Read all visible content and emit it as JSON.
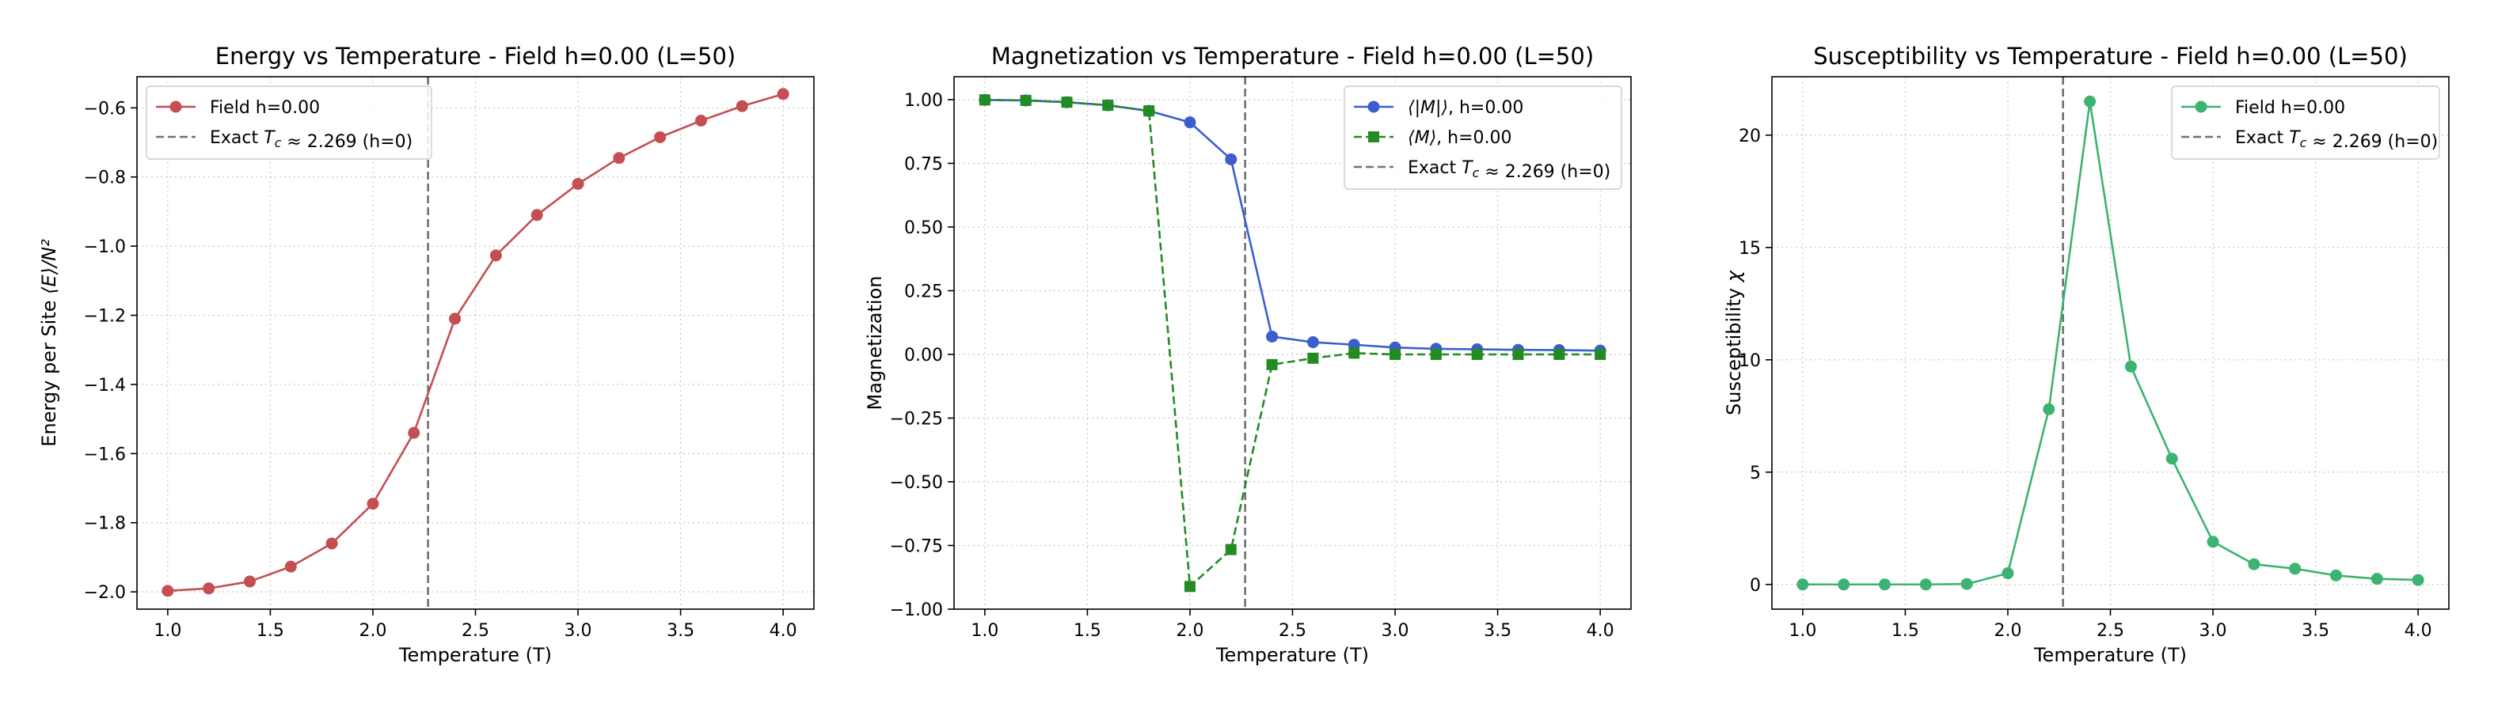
{
  "chart_data": [
    {
      "type": "line",
      "title": "Energy vs Temperature - Field h=0.00 (L=50)",
      "xlabel": "Temperature (T)",
      "ylabel": "Energy per Site ⟨E⟩/N²",
      "xlim": [
        0.85,
        4.15
      ],
      "ylim": [
        -2.05,
        -0.51
      ],
      "xticks": [
        1.0,
        1.5,
        2.0,
        2.5,
        3.0,
        3.5,
        4.0
      ],
      "xtick_labels": [
        "1.0",
        "1.5",
        "2.0",
        "2.5",
        "3.0",
        "3.5",
        "4.0"
      ],
      "yticks": [
        -2.0,
        -1.8,
        -1.6,
        -1.4,
        -1.2,
        -1.0,
        -0.8,
        -0.6
      ],
      "ytick_labels": [
        "−2.0",
        "−1.8",
        "−1.6",
        "−1.4",
        "−1.2",
        "−1.0",
        "−0.8",
        "−0.6"
      ],
      "grid": true,
      "legend_position": "upper-left",
      "x": [
        1.0,
        1.2,
        1.4,
        1.6,
        1.8,
        2.0,
        2.2,
        2.4,
        2.6,
        2.8,
        3.0,
        3.2,
        3.4,
        3.6,
        3.8,
        4.0
      ],
      "series": [
        {
          "name": "Field h=0.00",
          "values": [
            -1.997,
            -1.99,
            -1.97,
            -1.927,
            -1.86,
            -1.745,
            -1.54,
            -1.21,
            -1.027,
            -0.91,
            -0.82,
            -0.745,
            -0.685,
            -0.637,
            -0.595,
            -0.56
          ],
          "color": "#c44e52",
          "marker": "circle",
          "linestyle": "solid"
        }
      ],
      "vline": {
        "x": 2.269,
        "label": "Exact T_c ≈ 2.269 (h=0)",
        "color": "#707070"
      }
    },
    {
      "type": "line",
      "title": "Magnetization vs Temperature - Field h=0.00 (L=50)",
      "xlabel": "Temperature (T)",
      "ylabel": "Magnetization",
      "xlim": [
        0.85,
        4.15
      ],
      "ylim": [
        -1.0,
        1.09
      ],
      "xticks": [
        1.0,
        1.5,
        2.0,
        2.5,
        3.0,
        3.5,
        4.0
      ],
      "xtick_labels": [
        "1.0",
        "1.5",
        "2.0",
        "2.5",
        "3.0",
        "3.5",
        "4.0"
      ],
      "yticks": [
        -1.0,
        -0.75,
        -0.5,
        -0.25,
        0.0,
        0.25,
        0.5,
        0.75,
        1.0
      ],
      "ytick_labels": [
        "−1.00",
        "−0.75",
        "−0.50",
        "−0.25",
        "0.00",
        "0.25",
        "0.50",
        "0.75",
        "1.00"
      ],
      "grid": true,
      "legend_position": "upper-right",
      "x": [
        1.0,
        1.2,
        1.4,
        1.6,
        1.8,
        2.0,
        2.2,
        2.4,
        2.6,
        2.8,
        3.0,
        3.2,
        3.4,
        3.6,
        3.8,
        4.0
      ],
      "series": [
        {
          "name": "⟨|M|⟩, h=0.00",
          "values": [
            0.999,
            0.997,
            0.99,
            0.978,
            0.956,
            0.911,
            0.766,
            0.07,
            0.048,
            0.038,
            0.027,
            0.022,
            0.02,
            0.018,
            0.017,
            0.015
          ],
          "color": "#3a5fcd",
          "marker": "circle",
          "linestyle": "solid"
        },
        {
          "name": "⟨M⟩, h=0.00",
          "values": [
            0.999,
            0.997,
            0.99,
            0.978,
            0.956,
            -0.911,
            -0.766,
            -0.04,
            -0.015,
            0.005,
            0.0,
            0.0,
            0.0,
            0.0,
            0.0,
            0.0
          ],
          "color": "#228b22",
          "marker": "square",
          "linestyle": "dashed"
        }
      ],
      "vline": {
        "x": 2.269,
        "label": "Exact T_c ≈ 2.269 (h=0)",
        "color": "#707070"
      }
    },
    {
      "type": "line",
      "title": "Susceptibility vs Temperature - Field h=0.00 (L=50)",
      "xlabel": "Temperature (T)",
      "ylabel": "Susceptibility χ",
      "xlim": [
        0.85,
        4.15
      ],
      "ylim": [
        -1.1,
        22.6
      ],
      "xticks": [
        1.0,
        1.5,
        2.0,
        2.5,
        3.0,
        3.5,
        4.0
      ],
      "xtick_labels": [
        "1.0",
        "1.5",
        "2.0",
        "2.5",
        "3.0",
        "3.5",
        "4.0"
      ],
      "yticks": [
        0,
        5,
        10,
        15,
        20
      ],
      "ytick_labels": [
        "0",
        "5",
        "10",
        "15",
        "20"
      ],
      "grid": true,
      "legend_position": "upper-right",
      "x": [
        1.0,
        1.2,
        1.4,
        1.6,
        1.8,
        2.0,
        2.2,
        2.4,
        2.6,
        2.8,
        3.0,
        3.2,
        3.4,
        3.6,
        3.8,
        4.0
      ],
      "series": [
        {
          "name": "Field h=0.00",
          "values": [
            0.0,
            0.0,
            0.0,
            0.0,
            0.02,
            0.5,
            7.8,
            21.5,
            9.7,
            5.6,
            1.9,
            0.9,
            0.7,
            0.4,
            0.25,
            0.2
          ],
          "color": "#3cb371",
          "marker": "circle",
          "linestyle": "solid"
        }
      ],
      "vline": {
        "x": 2.269,
        "label": "Exact T_c ≈ 2.269 (h=0)",
        "color": "#707070"
      }
    }
  ]
}
